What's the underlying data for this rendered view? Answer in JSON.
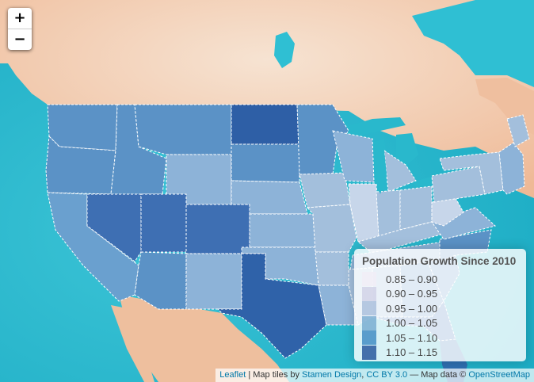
{
  "map": {
    "zoom_in_label": "+",
    "zoom_out_label": "−"
  },
  "legend": {
    "title": "Population Growth Since 2010",
    "items": [
      {
        "label": "0.85 – 0.90",
        "color": "#f1eef6"
      },
      {
        "label": "0.90 – 0.95",
        "color": "#d0d1e6"
      },
      {
        "label": "0.95 – 1.00",
        "color": "#a6bddb"
      },
      {
        "label": "1.00 – 1.05",
        "color": "#74a9cf"
      },
      {
        "label": "1.05 – 1.10",
        "color": "#3a87c2"
      },
      {
        "label": "1.10 – 1.15",
        "color": "#1f4f99"
      }
    ]
  },
  "attribution": {
    "leaflet": "Leaflet",
    "sep1": " | Map tiles by ",
    "stamen": "Stamen Design",
    "sep2": ", ",
    "license": "CC BY 3.0",
    "sep3": " — Map data © ",
    "osm": "OpenStreetMap"
  },
  "colors": {
    "water": "#1fb3c9",
    "land": "#f0c6a4",
    "land_light": "#f4e0cf",
    "state_border": "#ffffff"
  },
  "icons": {
    "zoom_in": "plus-icon",
    "zoom_out": "minus-icon"
  }
}
